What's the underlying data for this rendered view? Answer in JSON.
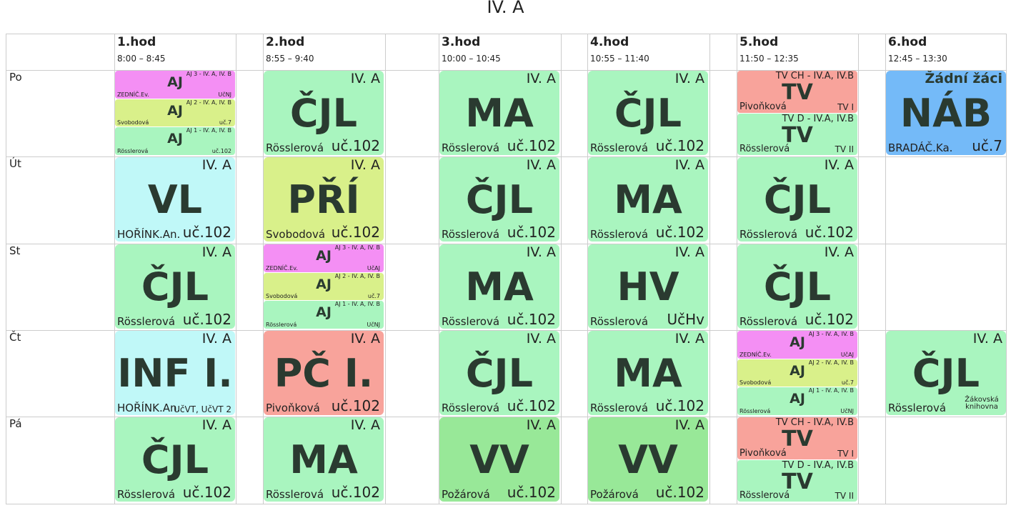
{
  "title": "IV. A",
  "periods": [
    {
      "label": "1.hod",
      "time": "8:00 – 8:45"
    },
    {
      "label": "2.hod",
      "time": "8:55 – 9:40"
    },
    {
      "label": "3.hod",
      "time": "10:00 – 10:45"
    },
    {
      "label": "4.hod",
      "time": "10:55 – 11:40"
    },
    {
      "label": "5.hod",
      "time": "11:50 – 12:35"
    },
    {
      "label": "6.hod",
      "time": "12:45 – 13:30"
    }
  ],
  "days": [
    {
      "name": "Po",
      "cells": [
        {
          "lessons": [
            {
              "subject": "AJ",
              "group": "AJ 3 - IV. A, IV. B",
              "teacher": "ZEDNÍČ.Ev.",
              "room": "UčNJ",
              "color": "#f48ff4"
            },
            {
              "subject": "AJ",
              "group": "AJ 2 - IV. A, IV. B",
              "teacher": "Svobodová",
              "room": "uč.7",
              "color": "#d9f08a"
            },
            {
              "subject": "AJ",
              "group": "AJ 1 - IV. A, IV. B",
              "teacher": "Rösslerová",
              "room": "uč.102",
              "color": "#a9f5bf"
            }
          ]
        },
        {
          "lessons": [
            {
              "subject": "ČJL",
              "group": "IV. A",
              "teacher": "Rösslerová",
              "room": "uč.102",
              "color": "#a9f5bf"
            }
          ]
        },
        {
          "lessons": [
            {
              "subject": "MA",
              "group": "IV. A",
              "teacher": "Rösslerová",
              "room": "uč.102",
              "color": "#a9f5bf"
            }
          ]
        },
        {
          "lessons": [
            {
              "subject": "ČJL",
              "group": "IV. A",
              "teacher": "Rösslerová",
              "room": "uč.102",
              "color": "#a9f5bf"
            }
          ]
        },
        {
          "lessons": [
            {
              "subject": "TV",
              "group": "TV CH - IV.A, IV.B",
              "teacher": "Pivoňková",
              "room": "TV I",
              "color": "#f8a39b"
            },
            {
              "subject": "TV",
              "group": "TV D - IV.A, IV.B",
              "teacher": "Rösslerová",
              "room": "TV II",
              "color": "#a9f5bf"
            }
          ]
        },
        {
          "lessons": [
            {
              "subject": "NÁB",
              "note": "Žádní žáci",
              "teacher": "BRADÁČ.Ka.",
              "room": "uč.7",
              "color": "#74baf8"
            }
          ]
        }
      ]
    },
    {
      "name": "Út",
      "cells": [
        {
          "lessons": [
            {
              "subject": "VL",
              "group": "IV. A",
              "teacher": "HOŘÍNK.An.",
              "room": "uč.102",
              "color": "#c0f8f8"
            }
          ]
        },
        {
          "lessons": [
            {
              "subject": "PŘÍ",
              "group": "IV. A",
              "teacher": "Svobodová",
              "room": "uč.102",
              "color": "#d9f08a"
            }
          ]
        },
        {
          "lessons": [
            {
              "subject": "ČJL",
              "group": "IV. A",
              "teacher": "Rösslerová",
              "room": "uč.102",
              "color": "#a9f5bf"
            }
          ]
        },
        {
          "lessons": [
            {
              "subject": "MA",
              "group": "IV. A",
              "teacher": "Rösslerová",
              "room": "uč.102",
              "color": "#a9f5bf"
            }
          ]
        },
        {
          "lessons": [
            {
              "subject": "ČJL",
              "group": "IV. A",
              "teacher": "Rösslerová",
              "room": "uč.102",
              "color": "#a9f5bf"
            }
          ]
        },
        null
      ]
    },
    {
      "name": "St",
      "cells": [
        {
          "lessons": [
            {
              "subject": "ČJL",
              "group": "IV. A",
              "teacher": "Rösslerová",
              "room": "uč.102",
              "color": "#a9f5bf"
            }
          ]
        },
        {
          "lessons": [
            {
              "subject": "AJ",
              "group": "AJ 3 - IV. A, IV. B",
              "teacher": "ZEDNÍČ.Ev.",
              "room": "UčAJ",
              "color": "#f48ff4"
            },
            {
              "subject": "AJ",
              "group": "AJ 2 - IV. A, IV. B",
              "teacher": "Svobodová",
              "room": "uč.7",
              "color": "#d9f08a"
            },
            {
              "subject": "AJ",
              "group": "AJ 1 - IV. A, IV. B",
              "teacher": "Rösslerová",
              "room": "UčNJ",
              "color": "#a9f5bf"
            }
          ]
        },
        {
          "lessons": [
            {
              "subject": "MA",
              "group": "IV. A",
              "teacher": "Rösslerová",
              "room": "uč.102",
              "color": "#a9f5bf"
            }
          ]
        },
        {
          "lessons": [
            {
              "subject": "HV",
              "group": "IV. A",
              "teacher": "Rösslerová",
              "room": "UčHv",
              "color": "#a9f5bf"
            }
          ]
        },
        {
          "lessons": [
            {
              "subject": "ČJL",
              "group": "IV. A",
              "teacher": "Rösslerová",
              "room": "uč.102",
              "color": "#a9f5bf"
            }
          ]
        },
        null
      ]
    },
    {
      "name": "Čt",
      "cells": [
        {
          "lessons": [
            {
              "subject": "INF I.",
              "group": "IV. A",
              "teacher": "HOŘÍNK.An.",
              "room": "UčVT, UčVT 2",
              "color": "#c0f8f8"
            }
          ]
        },
        {
          "lessons": [
            {
              "subject": "PČ I.",
              "group": "IV. A",
              "teacher": "Pivoňková",
              "room": "uč.102",
              "color": "#f8a39b"
            }
          ]
        },
        {
          "lessons": [
            {
              "subject": "ČJL",
              "group": "IV. A",
              "teacher": "Rösslerová",
              "room": "uč.102",
              "color": "#a9f5bf"
            }
          ]
        },
        {
          "lessons": [
            {
              "subject": "MA",
              "group": "IV. A",
              "teacher": "Rösslerová",
              "room": "uč.102",
              "color": "#a9f5bf"
            }
          ]
        },
        {
          "lessons": [
            {
              "subject": "AJ",
              "group": "AJ 3 - IV. A, IV. B",
              "teacher": "ZEDNÍČ.Ev.",
              "room": "UčAJ",
              "color": "#f48ff4"
            },
            {
              "subject": "AJ",
              "group": "AJ 2 - IV. A, IV. B",
              "teacher": "Svobodová",
              "room": "uč.7",
              "color": "#d9f08a"
            },
            {
              "subject": "AJ",
              "group": "AJ 1 - IV. A, IV. B",
              "teacher": "Rösslerová",
              "room": "UčNJ",
              "color": "#a9f5bf"
            }
          ]
        },
        {
          "lessons": [
            {
              "subject": "ČJL",
              "group": "IV. A",
              "teacher": "Rösslerová",
              "room": "Žákovská knihovna",
              "color": "#a9f5bf"
            }
          ]
        }
      ]
    },
    {
      "name": "Pá",
      "cells": [
        {
          "lessons": [
            {
              "subject": "ČJL",
              "group": "IV. A",
              "teacher": "Rösslerová",
              "room": "uč.102",
              "color": "#a9f5bf"
            }
          ]
        },
        {
          "lessons": [
            {
              "subject": "MA",
              "group": "IV. A",
              "teacher": "Rösslerová",
              "room": "uč.102",
              "color": "#a9f5bf"
            }
          ]
        },
        {
          "lessons": [
            {
              "subject": "VV",
              "group": "IV. A",
              "teacher": "Požárová",
              "room": "uč.102",
              "color": "#98e898"
            }
          ]
        },
        {
          "lessons": [
            {
              "subject": "VV",
              "group": "IV. A",
              "teacher": "Požárová",
              "room": "uč.102",
              "color": "#98e898"
            }
          ]
        },
        {
          "lessons": [
            {
              "subject": "TV",
              "group": "TV CH - IV.A, IV.B",
              "teacher": "Pivoňková",
              "room": "TV I",
              "color": "#f8a39b"
            },
            {
              "subject": "TV",
              "group": "TV D - IV.A, IV.B",
              "teacher": "Rösslerová",
              "room": "TV II",
              "color": "#a9f5bf"
            }
          ]
        },
        null
      ]
    }
  ]
}
